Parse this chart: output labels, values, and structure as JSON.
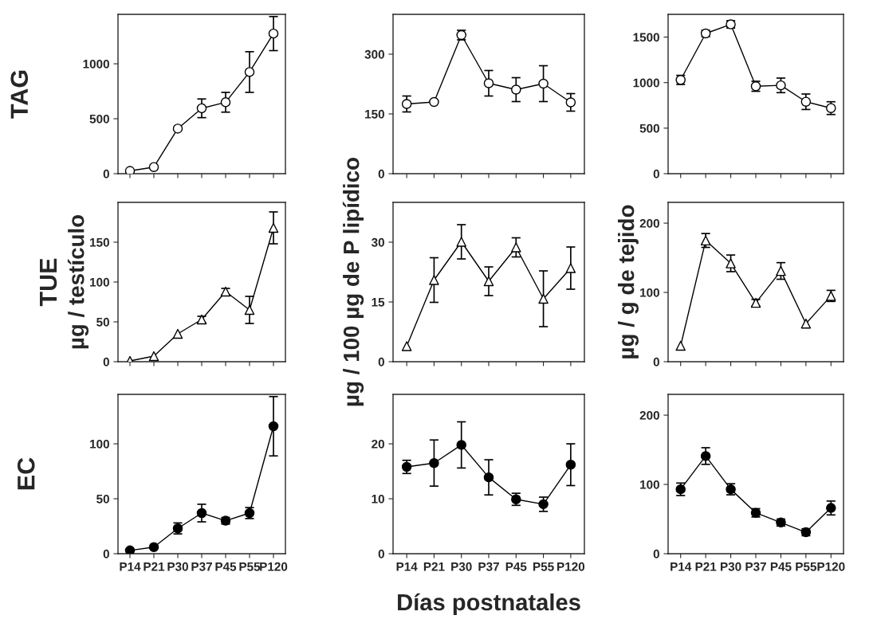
{
  "chart_data": [
    {
      "type": "line",
      "categories": [
        null,
        null,
        null,
        null,
        null,
        null,
        null
      ],
      "ylabel": "TAG",
      "ylim": [
        0,
        1450
      ],
      "yticks": [
        0,
        500,
        1000
      ],
      "tick_labels": "y",
      "marker": "circle",
      "line_style": "solid",
      "grid": false,
      "legend": false,
      "series": [
        {
          "color": "#000000",
          "colors": [
            "#ffffff",
            "#ffffff",
            "#ffffff",
            "#ffffff",
            "#ffffff",
            "#ffffff",
            "#ffffff"
          ],
          "values": [
            25,
            60,
            410,
            595,
            650,
            925,
            1275
          ],
          "errors": [
            null,
            null,
            null,
            85,
            90,
            185,
            155
          ]
        }
      ]
    },
    {
      "type": "line",
      "categories": [
        null,
        null,
        null,
        null,
        null,
        null,
        null
      ],
      "ylim": [
        0,
        400
      ],
      "yticks": [
        0,
        150,
        300
      ],
      "tick_labels": "y",
      "marker": "circle",
      "line_style": "solid",
      "grid": false,
      "legend": false,
      "series": [
        {
          "color": "#000000",
          "colors": [
            "#ffffff",
            "#ffffff",
            "#ffffff",
            "#ffffff",
            "#ffffff",
            "#ffffff",
            "#ffffff"
          ],
          "values": [
            175,
            180,
            348,
            227,
            211,
            226,
            179
          ],
          "errors": [
            20,
            null,
            12,
            32,
            30,
            45,
            22
          ]
        }
      ]
    },
    {
      "type": "line",
      "categories": [
        null,
        null,
        null,
        null,
        null,
        null,
        null
      ],
      "ylim": [
        0,
        1750
      ],
      "yticks": [
        0,
        500,
        1000,
        1500
      ],
      "tick_labels": "y",
      "marker": "circle",
      "line_style": "solid",
      "grid": false,
      "legend": false,
      "series": [
        {
          "color": "#000000",
          "colors": [
            "#ffffff",
            "#ffffff",
            "#ffffff",
            "#ffffff",
            "#ffffff",
            "#ffffff",
            "#ffffff"
          ],
          "values": [
            1030,
            1540,
            1640,
            960,
            970,
            790,
            720
          ],
          "errors": [
            50,
            35,
            40,
            55,
            80,
            85,
            70
          ]
        }
      ]
    },
    {
      "type": "line",
      "categories": [
        null,
        null,
        null,
        null,
        null,
        null,
        null
      ],
      "ylabel": "TUE",
      "y2label": "µg / testículo",
      "ylim": [
        0,
        200
      ],
      "yticks": [
        0,
        50,
        100,
        150
      ],
      "tick_labels": "y",
      "marker": "triangle",
      "line_style": "solid",
      "grid": false,
      "legend": false,
      "series": [
        {
          "color": "#000000",
          "colors": [
            "#ffffff",
            "#ffffff",
            "#ffffff",
            "#ffffff",
            "#ffffff",
            "#ffffff",
            "#ffffff"
          ],
          "values": [
            1,
            7,
            35,
            53,
            88,
            65,
            168
          ],
          "errors": [
            null,
            null,
            null,
            4,
            4,
            17,
            20
          ]
        }
      ]
    },
    {
      "type": "line",
      "categories": [
        null,
        null,
        null,
        null,
        null,
        null,
        null
      ],
      "y2label": "µg / 100 µg de P lipídico",
      "ylim": [
        0,
        40
      ],
      "yticks": [
        0,
        15,
        30
      ],
      "tick_labels": "y",
      "marker": "triangle",
      "line_style": "solid",
      "grid": false,
      "legend": false,
      "series": [
        {
          "color": "#000000",
          "colors": [
            "#ffffff",
            "#ffffff",
            "#ffffff",
            "#ffffff",
            "#ffffff",
            "#ffffff",
            "#ffffff"
          ],
          "values": [
            3.9,
            20.5,
            30.1,
            20.2,
            28.7,
            15.8,
            23.5
          ],
          "errors": [
            null,
            5.6,
            4.3,
            3.6,
            2.4,
            7,
            5.3
          ]
        }
      ]
    },
    {
      "type": "line",
      "categories": [
        null,
        null,
        null,
        null,
        null,
        null,
        null
      ],
      "y2label": "µg / g de tejido",
      "ylim": [
        0,
        230
      ],
      "yticks": [
        0,
        100,
        200
      ],
      "tick_labels": "y",
      "marker": "triangle",
      "line_style": "solid",
      "grid": false,
      "legend": false,
      "series": [
        {
          "color": "#000000",
          "colors": [
            "#ffffff",
            "#ffffff",
            "#ffffff",
            "#ffffff",
            "#ffffff",
            "#ffffff",
            "#ffffff"
          ],
          "values": [
            23,
            175,
            142,
            85,
            131,
            55,
            95
          ],
          "errors": [
            null,
            10,
            12,
            5,
            12,
            null,
            8
          ]
        }
      ]
    },
    {
      "type": "line",
      "categories": [
        "P14",
        "P21",
        "P30",
        "P37",
        "P45",
        "P55",
        "P120"
      ],
      "ylabel": "EC",
      "ylim": [
        0,
        145
      ],
      "yticks": [
        0,
        50,
        100
      ],
      "marker": "circle",
      "line_style": "solid",
      "grid": false,
      "legend": false,
      "series": [
        {
          "color": "#000000",
          "values": [
            3,
            6,
            23,
            37,
            30,
            37,
            116
          ],
          "errors": [
            null,
            null,
            5,
            8,
            3,
            5,
            27
          ]
        }
      ]
    },
    {
      "type": "line",
      "categories": [
        "P14",
        "P21",
        "P30",
        "P37",
        "P45",
        "P55",
        "P120"
      ],
      "xlabel": "Días postnatales",
      "ylim": [
        0,
        29
      ],
      "yticks": [
        0,
        10,
        20
      ],
      "marker": "circle",
      "line_style": "solid",
      "grid": false,
      "legend": false,
      "series": [
        {
          "color": "#000000",
          "values": [
            15.8,
            16.5,
            19.8,
            13.9,
            9.9,
            9.0,
            16.2
          ],
          "errors": [
            1.2,
            4.2,
            4.2,
            3.2,
            1.1,
            1.3,
            3.8
          ]
        }
      ]
    },
    {
      "type": "line",
      "categories": [
        "P14",
        "P21",
        "P30",
        "P37",
        "P45",
        "P55",
        "P120"
      ],
      "ylim": [
        0,
        230
      ],
      "yticks": [
        0,
        100,
        200
      ],
      "marker": "circle",
      "line_style": "solid",
      "grid": false,
      "legend": false,
      "series": [
        {
          "color": "#000000",
          "values": [
            93,
            141,
            93,
            59,
            45,
            31,
            66
          ],
          "errors": [
            9,
            12,
            8,
            6,
            5,
            5,
            10
          ]
        }
      ]
    }
  ]
}
